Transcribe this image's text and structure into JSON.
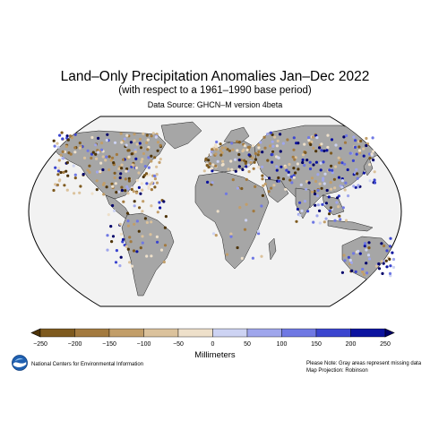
{
  "header": {
    "title": "Land–Only Precipitation Anomalies Jan–Dec 2022",
    "subtitle": "(with respect to a 1961–1990 base period)",
    "source": "Data Source: GHCN–M version 4beta"
  },
  "map": {
    "projection": "Robinson",
    "land_color": "#a6a6a6",
    "ocean_color": "#f2f2f2",
    "missing_data_color": "#a6a6a6"
  },
  "colorbar": {
    "title": "Millimeters",
    "ticks": [
      "−250",
      "−200",
      "−150",
      "−100",
      "−50",
      "0",
      "50",
      "100",
      "150",
      "200",
      "250"
    ],
    "colors": [
      "#4e3408",
      "#7e5a1f",
      "#a37a3f",
      "#c29e69",
      "#dbc29c",
      "#eee0ca",
      "#cdd3f3",
      "#9fa6ec",
      "#6f78e3",
      "#3b45cf",
      "#0c139f",
      "#00006a"
    ]
  },
  "footer": {
    "organization": "National Centers for Environmental Information",
    "note": "Please Note: Gray areas represent missing data",
    "projection_note": "Map Projection: Robinson",
    "logo": "NOAA"
  }
}
